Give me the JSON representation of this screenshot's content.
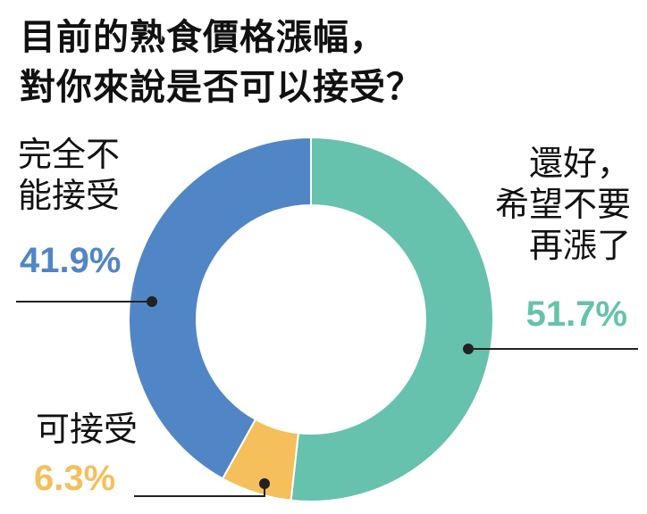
{
  "title": {
    "line1": "目前的熟食價格漲幅，",
    "line2": "對你來說是否可以接受？"
  },
  "chart_data": {
    "type": "pie",
    "variant": "donut",
    "title": "目前的熟食價格漲幅，對你來說是否可以接受？",
    "slices": [
      {
        "name": "還好，希望不要再漲了",
        "label_lines": [
          "還好，",
          "希望不要",
          "再漲了"
        ],
        "value": 51.7,
        "label": "51.7%",
        "color": "#66c2ad"
      },
      {
        "name": "可接受",
        "label_lines": [
          "可接受"
        ],
        "value": 6.3,
        "label": "6.3%",
        "color": "#f5bf5c"
      },
      {
        "name": "完全不能接受",
        "label_lines": [
          "完全不",
          "能接受"
        ],
        "value": 41.9,
        "label": "41.9%",
        "color": "#5186c6"
      }
    ],
    "start": "12 o'clock",
    "direction": "clockwise"
  },
  "colors": {
    "leader": "#222222",
    "text": "#111111"
  }
}
